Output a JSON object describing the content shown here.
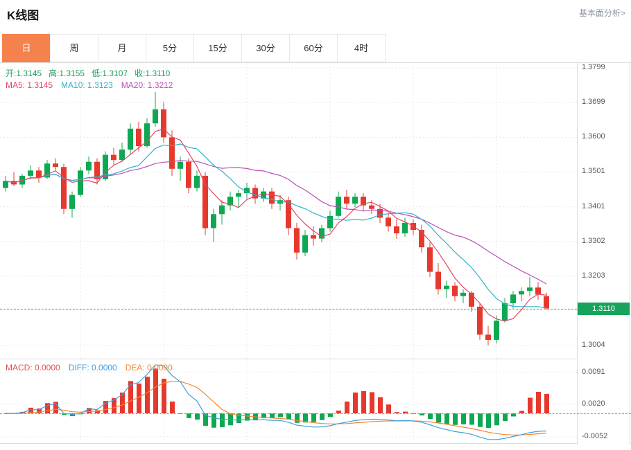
{
  "header": {
    "title": "K线图",
    "link": "基本面分析>"
  },
  "tabs": [
    {
      "label": "日",
      "name": "day",
      "active": true
    },
    {
      "label": "周",
      "name": "week",
      "active": false
    },
    {
      "label": "月",
      "name": "month",
      "active": false
    },
    {
      "label": "5分",
      "name": "5min",
      "active": false
    },
    {
      "label": "15分",
      "name": "15min",
      "active": false
    },
    {
      "label": "30分",
      "name": "30min",
      "active": false
    },
    {
      "label": "60分",
      "name": "60min",
      "active": false
    },
    {
      "label": "4时",
      "name": "4hour",
      "active": false
    }
  ],
  "colors": {
    "accent_orange": "#f5814d",
    "up": "#0fa852",
    "down": "#e6392e",
    "ma5": "#e34566",
    "ma10": "#2db0c6",
    "ma20": "#b94fb9",
    "diff_line": "#3d9fe0",
    "dea_line": "#f0882e",
    "macd_text": "#e65050",
    "ohlc_text": "#1ba05a",
    "zero_line": "#3cc8d8",
    "badge": "#17a35c",
    "grid": "#e9e9e9",
    "border": "#dddddd",
    "axis_text": "#555555"
  },
  "legend": {
    "ohlc_items": [
      {
        "text": "开:1.3145",
        "name": "open-value",
        "color": "#1ba05a"
      },
      {
        "text": "高:1.3155",
        "name": "high-value",
        "color": "#1ba05a"
      },
      {
        "text": "低:1.3107",
        "name": "low-value",
        "color": "#1ba05a"
      },
      {
        "text": "收:1.3110",
        "name": "close-value",
        "color": "#1ba05a"
      }
    ],
    "ma_items": [
      {
        "text": "MA5: 1.3145",
        "name": "ma5-value",
        "color": "#e34566"
      },
      {
        "text": "MA10: 1.3123",
        "name": "ma10-value",
        "color": "#2db0c6"
      },
      {
        "text": "MA20: 1.3212",
        "name": "ma20-value",
        "color": "#b94fb9"
      }
    ],
    "macd_items": [
      {
        "text": "MACD: 0.0000",
        "name": "macd-value",
        "color": "#e65050"
      },
      {
        "text": "DIFF: 0.0000",
        "name": "diff-value",
        "color": "#3d9fe0"
      },
      {
        "text": "DEA: 0.0000",
        "name": "dea-value",
        "color": "#f0882e"
      }
    ]
  },
  "chart_data": {
    "type": "candlestick",
    "title": "K线图",
    "timeframe": "日",
    "ohlc_legend": {
      "open": 1.3145,
      "high": 1.3155,
      "low": 1.3107,
      "close": 1.311
    },
    "ma_legend": {
      "MA5": 1.3145,
      "MA10": 1.3123,
      "MA20": 1.3212
    },
    "ma_periods": [
      5,
      10,
      20
    ],
    "y_axis_ticks": [
      "1.3799",
      "1.3699",
      "1.3600",
      "1.3501",
      "1.3401",
      "1.3302",
      "1.3203",
      "1.3004"
    ],
    "current_price": "1.3110",
    "candles": [
      [
        1.3455,
        1.349,
        1.3445,
        1.3475
      ],
      [
        1.3475,
        1.35,
        1.346,
        1.3465
      ],
      [
        1.3465,
        1.3495,
        1.3455,
        1.349
      ],
      [
        1.349,
        1.352,
        1.348,
        1.3505
      ],
      [
        1.3505,
        1.3515,
        1.347,
        1.3485
      ],
      [
        1.3485,
        1.3535,
        1.348,
        1.3525
      ],
      [
        1.3525,
        1.354,
        1.3505,
        1.3515
      ],
      [
        1.3515,
        1.3525,
        1.338,
        1.3395
      ],
      [
        1.3395,
        1.3445,
        1.337,
        1.3435
      ],
      [
        1.3435,
        1.3515,
        1.343,
        1.3505
      ],
      [
        1.3505,
        1.3545,
        1.3495,
        1.353
      ],
      [
        1.353,
        1.354,
        1.3465,
        1.348
      ],
      [
        1.348,
        1.356,
        1.3475,
        1.355
      ],
      [
        1.355,
        1.357,
        1.352,
        1.3535
      ],
      [
        1.3535,
        1.3585,
        1.353,
        1.3565
      ],
      [
        1.3565,
        1.364,
        1.355,
        1.3625
      ],
      [
        1.3625,
        1.3645,
        1.356,
        1.3575
      ],
      [
        1.3575,
        1.3655,
        1.357,
        1.364
      ],
      [
        1.364,
        1.373,
        1.363,
        1.368
      ],
      [
        1.368,
        1.37,
        1.3585,
        1.36
      ],
      [
        1.36,
        1.362,
        1.349,
        1.351
      ],
      [
        1.351,
        1.3545,
        1.3475,
        1.353
      ],
      [
        1.353,
        1.354,
        1.344,
        1.3455
      ],
      [
        1.3455,
        1.3505,
        1.3445,
        1.349
      ],
      [
        1.349,
        1.35,
        1.332,
        1.334
      ],
      [
        1.334,
        1.3395,
        1.33,
        1.338
      ],
      [
        1.338,
        1.342,
        1.335,
        1.3405
      ],
      [
        1.3405,
        1.3445,
        1.339,
        1.343
      ],
      [
        1.343,
        1.345,
        1.34,
        1.344
      ],
      [
        1.344,
        1.347,
        1.3425,
        1.3455
      ],
      [
        1.3455,
        1.3465,
        1.341,
        1.3425
      ],
      [
        1.3425,
        1.3455,
        1.3415,
        1.3445
      ],
      [
        1.3445,
        1.3455,
        1.3395,
        1.341
      ],
      [
        1.341,
        1.3435,
        1.339,
        1.342
      ],
      [
        1.342,
        1.343,
        1.332,
        1.334
      ],
      [
        1.334,
        1.3355,
        1.325,
        1.327
      ],
      [
        1.327,
        1.3335,
        1.326,
        1.332
      ],
      [
        1.332,
        1.3345,
        1.329,
        1.331
      ],
      [
        1.331,
        1.335,
        1.33,
        1.334
      ],
      [
        1.334,
        1.339,
        1.333,
        1.3375
      ],
      [
        1.3375,
        1.3445,
        1.337,
        1.343
      ],
      [
        1.343,
        1.345,
        1.3395,
        1.341
      ],
      [
        1.341,
        1.344,
        1.34,
        1.343
      ],
      [
        1.343,
        1.344,
        1.339,
        1.3405
      ],
      [
        1.3405,
        1.342,
        1.338,
        1.3395
      ],
      [
        1.3395,
        1.341,
        1.3355,
        1.337
      ],
      [
        1.337,
        1.3385,
        1.333,
        1.3345
      ],
      [
        1.3345,
        1.3365,
        1.331,
        1.3325
      ],
      [
        1.3325,
        1.337,
        1.3315,
        1.3355
      ],
      [
        1.3355,
        1.3365,
        1.332,
        1.3335
      ],
      [
        1.3335,
        1.335,
        1.327,
        1.3285
      ],
      [
        1.3285,
        1.33,
        1.32,
        1.3215
      ],
      [
        1.3215,
        1.324,
        1.315,
        1.3165
      ],
      [
        1.3165,
        1.319,
        1.314,
        1.3175
      ],
      [
        1.3175,
        1.3185,
        1.313,
        1.3145
      ],
      [
        1.3145,
        1.3165,
        1.3125,
        1.3155
      ],
      [
        1.3155,
        1.316,
        1.31,
        1.3115
      ],
      [
        1.3115,
        1.3125,
        1.302,
        1.3035
      ],
      [
        1.3035,
        1.306,
        1.3004,
        1.302
      ],
      [
        1.302,
        1.309,
        1.301,
        1.3075
      ],
      [
        1.3075,
        1.314,
        1.307,
        1.3125
      ],
      [
        1.3125,
        1.316,
        1.311,
        1.315
      ],
      [
        1.315,
        1.317,
        1.313,
        1.316
      ],
      [
        1.316,
        1.32,
        1.3145,
        1.317
      ],
      [
        1.317,
        1.3185,
        1.3135,
        1.315
      ],
      [
        1.3145,
        1.3155,
        1.3107,
        1.311
      ]
    ],
    "indicator": {
      "name": "MACD",
      "params": [
        12,
        26,
        9
      ],
      "displayed_values": {
        "MACD": "0.0000",
        "DIFF": "0.0000",
        "DEA": "0.0000"
      },
      "y_axis_ticks": [
        "0.0091",
        "0.0020",
        "-0.0052"
      ]
    }
  }
}
